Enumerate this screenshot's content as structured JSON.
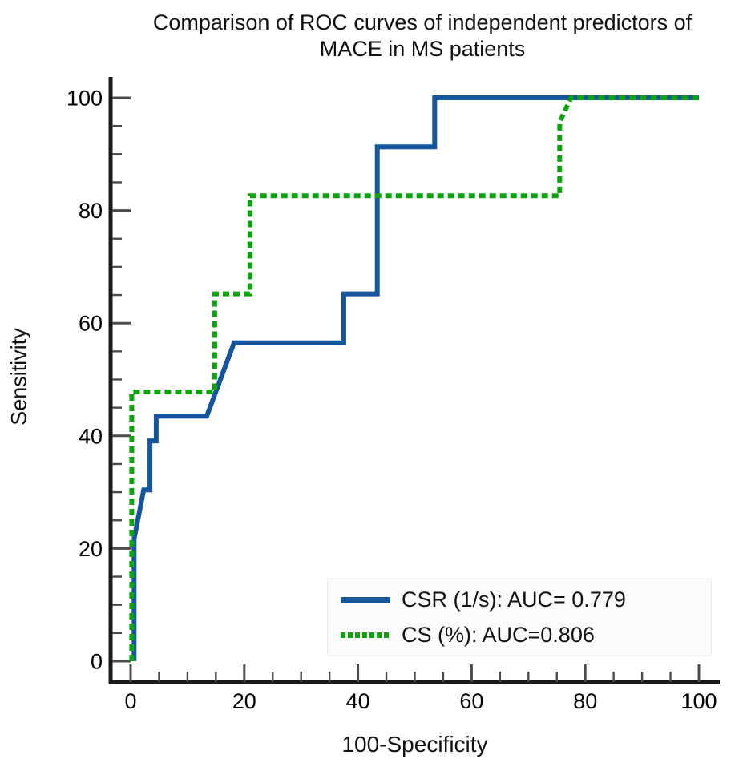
{
  "page": {
    "background": "#ffffff"
  },
  "chart_data": {
    "type": "line",
    "chart_kind": "roc-curve-comparison",
    "title": "Comparison of ROC curves of independent predictors of MACE in MS patients",
    "title_lines": [
      "Comparison of ROC curves of independent predictors of",
      "MACE in MS patients"
    ],
    "xlabel": "100-Specificity",
    "ylabel": "Sensitivity",
    "xlim": [
      0,
      100
    ],
    "ylim": [
      0,
      100
    ],
    "x_ticks": [
      0,
      20,
      40,
      60,
      80,
      100
    ],
    "y_ticks": [
      0,
      20,
      40,
      60,
      80,
      100
    ],
    "minor_tick_interval": 5,
    "grid": false,
    "axis_color": "#1a1a1a",
    "tick_color": "#4c4c4c",
    "legend": {
      "position": "inside-bottom-right",
      "entries": [
        {
          "label": "CSR (1/s): AUC= 0.779",
          "color": "#14559e",
          "style": "solid"
        },
        {
          "label": "CS (%): AUC=0.806",
          "color": "#0ba50b",
          "style": "dashed"
        }
      ]
    },
    "series": [
      {
        "name": "CSR (1/s)",
        "auc": 0.779,
        "color": "#14559e",
        "line_style": "solid",
        "points": [
          [
            0.6,
            0
          ],
          [
            0.6,
            21.7
          ],
          [
            2.3,
            30.4
          ],
          [
            3.4,
            30.4
          ],
          [
            3.4,
            39.1
          ],
          [
            4.5,
            39.1
          ],
          [
            4.5,
            43.5
          ],
          [
            13.4,
            43.5
          ],
          [
            18.2,
            56.5
          ],
          [
            37.5,
            56.5
          ],
          [
            37.5,
            65.2
          ],
          [
            43.4,
            65.2
          ],
          [
            43.4,
            91.3
          ],
          [
            53.5,
            91.3
          ],
          [
            53.5,
            100
          ],
          [
            100,
            100
          ]
        ]
      },
      {
        "name": "CS (%)",
        "auc": 0.806,
        "color": "#0ba50b",
        "line_style": "dashed",
        "points": [
          [
            0.2,
            0
          ],
          [
            0.2,
            47.8
          ],
          [
            14.8,
            47.8
          ],
          [
            14.8,
            65.2
          ],
          [
            21,
            65.2
          ],
          [
            21,
            82.6
          ],
          [
            75.5,
            82.6
          ],
          [
            75.5,
            95.7
          ],
          [
            77.5,
            100
          ],
          [
            100,
            100
          ]
        ]
      }
    ]
  }
}
